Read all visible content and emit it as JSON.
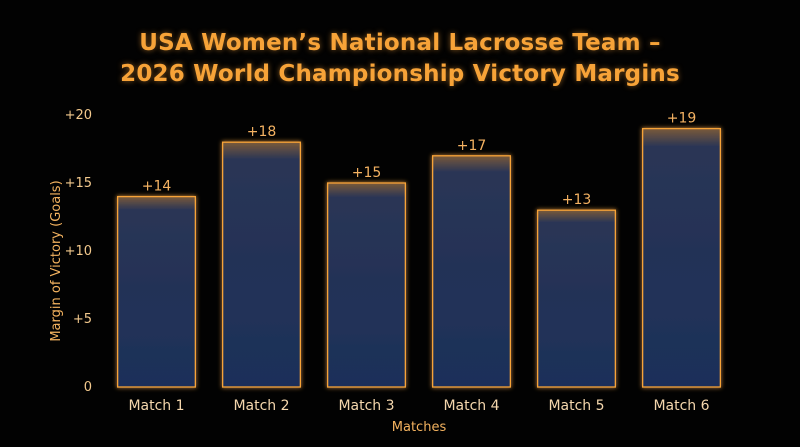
{
  "chart_data": {
    "type": "bar",
    "title_lines": [
      "USA Women’s National Lacrosse Team –",
      "2026 World Championship Victory Margins"
    ],
    "xlabel": "Matches",
    "ylabel": "Margin of Victory (Goals)",
    "categories": [
      "Match 1",
      "Match 2",
      "Match 3",
      "Match 4",
      "Match 5",
      "Match 6"
    ],
    "values": [
      14,
      18,
      15,
      17,
      13,
      19
    ],
    "data_labels": [
      "+14",
      "+18",
      "+15",
      "+17",
      "+13",
      "+19"
    ],
    "ylim": [
      0,
      20
    ],
    "yticks": [
      0,
      5,
      10,
      15,
      20
    ],
    "ytick_labels": [
      "0",
      "+5",
      "+10",
      "+15",
      "+20"
    ],
    "grid": false,
    "colors": {
      "background": "#020202",
      "bar_fill": "#1c2f5a",
      "bar_edge": "#f7a338",
      "text": "#f7a338"
    }
  }
}
